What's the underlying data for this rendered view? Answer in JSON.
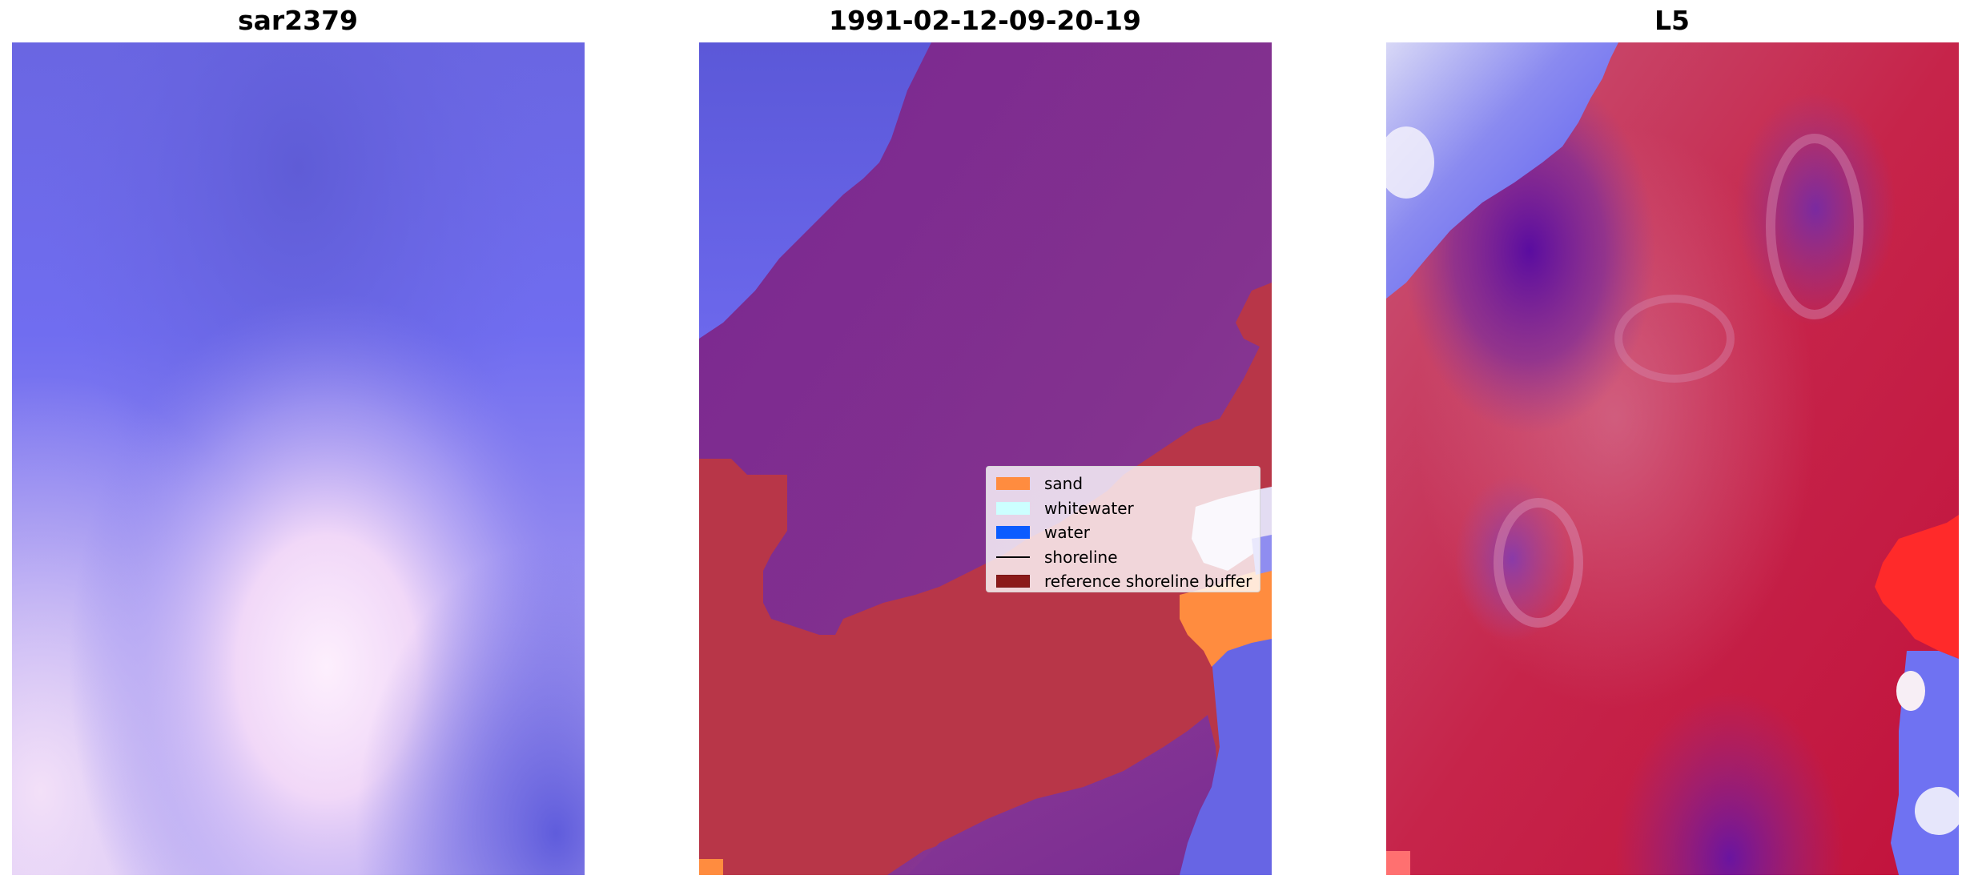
{
  "panels": [
    {
      "title": "sar2379"
    },
    {
      "title": "1991-02-12-09-20-19"
    },
    {
      "title": "L5"
    }
  ],
  "legend": {
    "items": [
      {
        "label": "sand",
        "color": "#ff8c3f",
        "kind": "patch"
      },
      {
        "label": "whitewater",
        "color": "#ccffff",
        "kind": "patch"
      },
      {
        "label": "water",
        "color": "#0b5cff",
        "kind": "patch"
      },
      {
        "label": "shoreline",
        "color": "#000000",
        "kind": "line"
      },
      {
        "label": "reference shoreline buffer",
        "color": "#8b1a1a",
        "kind": "patch"
      }
    ]
  },
  "colors": {
    "sar_blue": "#6d6ae8",
    "classified_purple": "#7c2b8c",
    "classified_red": "#b83648",
    "l5_red": "#c4163f",
    "l5_blue": "#5a5cf0"
  }
}
